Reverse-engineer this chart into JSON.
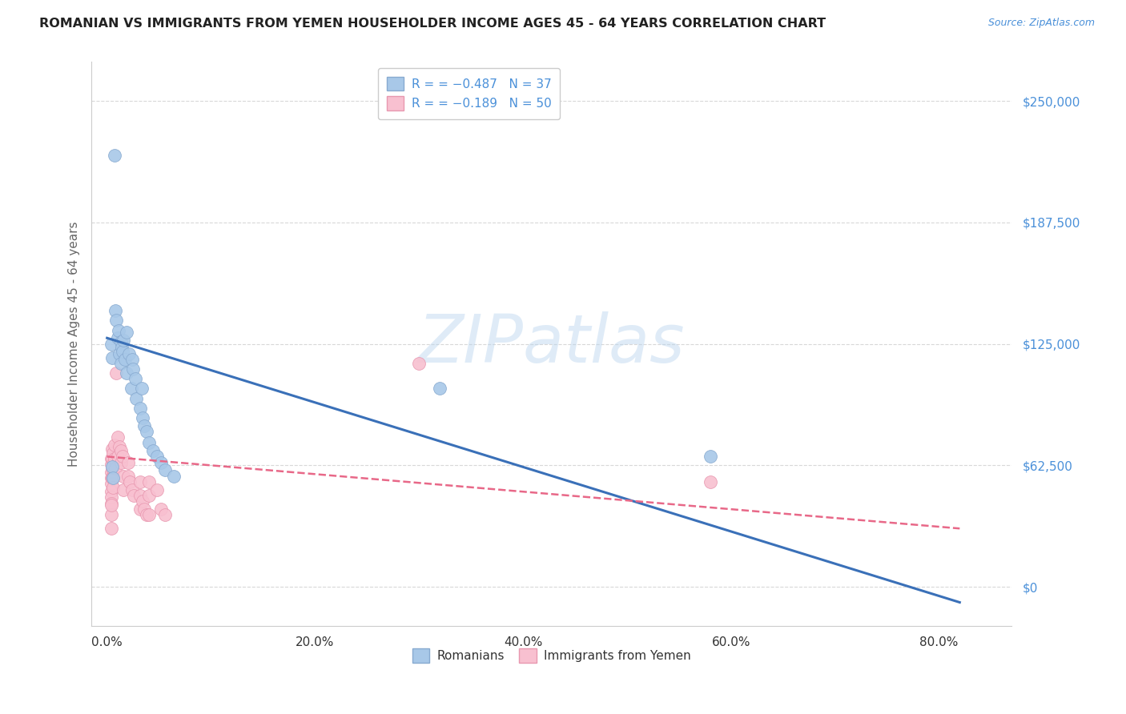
{
  "title": "ROMANIAN VS IMMIGRANTS FROM YEMEN HOUSEHOLDER INCOME AGES 45 - 64 YEARS CORRELATION CHART",
  "source": "Source: ZipAtlas.com",
  "ylabel": "Householder Income Ages 45 - 64 years",
  "xlabel_ticks": [
    "0.0%",
    "20.0%",
    "40.0%",
    "60.0%",
    "80.0%"
  ],
  "xlabel_vals": [
    0.0,
    0.2,
    0.4,
    0.6,
    0.8
  ],
  "ytick_labels": [
    "$0",
    "$62,500",
    "$125,000",
    "$187,500",
    "$250,000"
  ],
  "ytick_vals": [
    0,
    62500,
    125000,
    187500,
    250000
  ],
  "ylim": [
    -20000,
    270000
  ],
  "xlim": [
    -0.015,
    0.87
  ],
  "legend_r1": "R = −0.487",
  "legend_n1": "N = 37",
  "legend_r2": "R = −0.189",
  "legend_n2": "N = 50",
  "legend_label1": "Romanians",
  "legend_label2": "Immigrants from Yemen",
  "watermark": "ZIPatlas",
  "blue_scatter": [
    [
      0.004,
      125000
    ],
    [
      0.005,
      118000
    ],
    [
      0.007,
      222000
    ],
    [
      0.008,
      142000
    ],
    [
      0.009,
      137000
    ],
    [
      0.01,
      128000
    ],
    [
      0.011,
      132000
    ],
    [
      0.012,
      120000
    ],
    [
      0.013,
      115000
    ],
    [
      0.013,
      126000
    ],
    [
      0.014,
      123000
    ],
    [
      0.015,
      121000
    ],
    [
      0.016,
      127000
    ],
    [
      0.017,
      117000
    ],
    [
      0.019,
      110000
    ],
    [
      0.019,
      131000
    ],
    [
      0.021,
      120000
    ],
    [
      0.023,
      102000
    ],
    [
      0.024,
      117000
    ],
    [
      0.025,
      112000
    ],
    [
      0.027,
      107000
    ],
    [
      0.028,
      97000
    ],
    [
      0.032,
      92000
    ],
    [
      0.033,
      102000
    ],
    [
      0.034,
      87000
    ],
    [
      0.036,
      83000
    ],
    [
      0.038,
      80000
    ],
    [
      0.04,
      74000
    ],
    [
      0.044,
      70000
    ],
    [
      0.048,
      67000
    ],
    [
      0.052,
      64000
    ],
    [
      0.056,
      60000
    ],
    [
      0.064,
      57000
    ],
    [
      0.005,
      62000
    ],
    [
      0.006,
      56000
    ],
    [
      0.32,
      102000
    ],
    [
      0.58,
      67000
    ]
  ],
  "pink_scatter": [
    [
      0.004,
      66000
    ],
    [
      0.004,
      63000
    ],
    [
      0.004,
      59000
    ],
    [
      0.004,
      56000
    ],
    [
      0.004,
      53000
    ],
    [
      0.004,
      49000
    ],
    [
      0.004,
      46000
    ],
    [
      0.004,
      43000
    ],
    [
      0.005,
      71000
    ],
    [
      0.005,
      66000
    ],
    [
      0.005,
      61000
    ],
    [
      0.005,
      56000
    ],
    [
      0.006,
      69000
    ],
    [
      0.006,
      63000
    ],
    [
      0.006,
      56000
    ],
    [
      0.006,
      51000
    ],
    [
      0.007,
      73000
    ],
    [
      0.007,
      66000
    ],
    [
      0.008,
      61000
    ],
    [
      0.009,
      110000
    ],
    [
      0.01,
      77000
    ],
    [
      0.01,
      67000
    ],
    [
      0.012,
      72000
    ],
    [
      0.013,
      64000
    ],
    [
      0.013,
      70000
    ],
    [
      0.015,
      67000
    ],
    [
      0.016,
      57000
    ],
    [
      0.016,
      50000
    ],
    [
      0.02,
      64000
    ],
    [
      0.02,
      57000
    ],
    [
      0.022,
      54000
    ],
    [
      0.024,
      50000
    ],
    [
      0.026,
      47000
    ],
    [
      0.032,
      54000
    ],
    [
      0.032,
      47000
    ],
    [
      0.032,
      40000
    ],
    [
      0.034,
      44000
    ],
    [
      0.036,
      40000
    ],
    [
      0.038,
      37000
    ],
    [
      0.04,
      54000
    ],
    [
      0.04,
      47000
    ],
    [
      0.04,
      37000
    ],
    [
      0.048,
      50000
    ],
    [
      0.052,
      40000
    ],
    [
      0.056,
      37000
    ],
    [
      0.3,
      115000
    ],
    [
      0.58,
      54000
    ],
    [
      0.004,
      30000
    ],
    [
      0.004,
      37000
    ],
    [
      0.004,
      42000
    ]
  ],
  "blue_line_x": [
    0.0,
    0.82
  ],
  "blue_line_y": [
    128000,
    -8000
  ],
  "pink_line_x": [
    0.0,
    0.82
  ],
  "pink_line_y": [
    67000,
    30000
  ],
  "background_color": "#ffffff",
  "grid_color": "#d8d8d8",
  "title_color": "#222222",
  "axis_tick_color": "#4a90d9",
  "ylabel_color": "#666666",
  "scatter_blue_color": "#a8c8e8",
  "scatter_blue_edge": "#88aad0",
  "scatter_pink_color": "#f8c0d0",
  "scatter_pink_edge": "#e898b0",
  "line_blue_color": "#3a70b8",
  "line_pink_color": "#e86888",
  "marker_size": 130,
  "title_fontsize": 11.5,
  "source_fontsize": 9,
  "tick_fontsize": 11,
  "ylabel_fontsize": 11,
  "legend_fontsize": 11,
  "watermark_fontsize": 60
}
